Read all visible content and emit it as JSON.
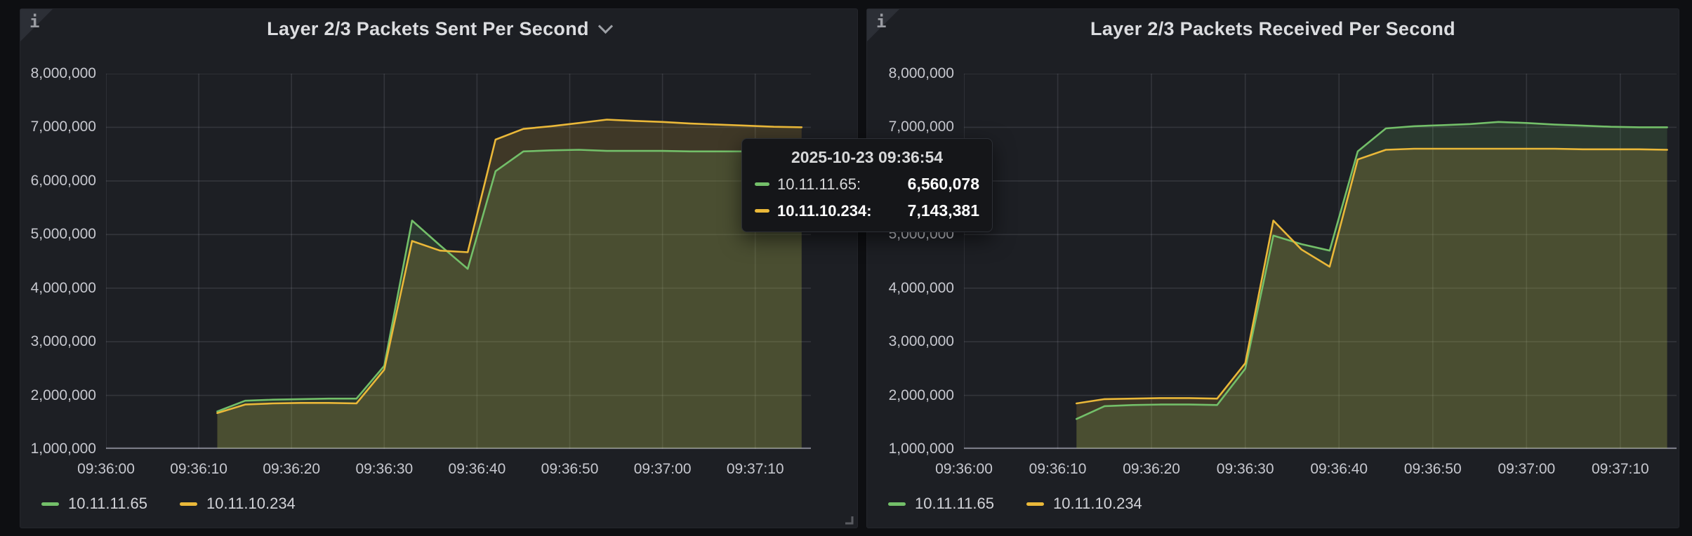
{
  "colors": {
    "page_bg": "#0e0f12",
    "panel_bg": "#1d1f24",
    "grid": "rgba(204,204,220,0.13)",
    "axis_line": "rgba(204,204,220,0.5)",
    "tick_text": "#c7c8cf",
    "title_text": "#dcdde0",
    "green": "#73bf69",
    "yellow": "#eab839"
  },
  "panels": [
    {
      "title": "Layer 2/3 Packets Sent Per Second",
      "has_title_dropdown": true,
      "info_icon": "i",
      "legend": [
        "10.11.11.65",
        "10.11.10.234"
      ]
    },
    {
      "title": "Layer 2/3 Packets Received Per Second",
      "has_title_dropdown": false,
      "info_icon": "i",
      "legend": [
        "10.11.11.65",
        "10.11.10.234"
      ]
    }
  ],
  "tooltip": {
    "header": "2025-10-23 09:36:54",
    "rows": [
      {
        "label": "10.11.11.65:",
        "value": "6,560,078",
        "color": "#73bf69",
        "bold": false
      },
      {
        "label": "10.11.10.234:",
        "value": "7,143,381",
        "color": "#eab839",
        "bold": true
      }
    ]
  },
  "chart_data": [
    {
      "type": "line",
      "title": "Layer 2/3 Packets Sent Per Second",
      "grid": true,
      "legend_position": "bottom-left",
      "fill_opacity": 0.17,
      "ylim": [
        1000000,
        8000000
      ],
      "yticks": [
        "8,000,000",
        "7,000,000",
        "6,000,000",
        "5,000,000",
        "4,000,000",
        "3,000,000",
        "2,000,000",
        "1,000,000"
      ],
      "xticks": [
        "09:36:00",
        "09:36:10",
        "09:36:20",
        "09:36:30",
        "09:36:40",
        "09:36:50",
        "09:37:00",
        "09:37:10"
      ],
      "x_domain": [
        "09:36:00",
        "09:37:16"
      ],
      "x": [
        "09:36:12",
        "09:36:15",
        "09:36:18",
        "09:36:21",
        "09:36:24",
        "09:36:27",
        "09:36:30",
        "09:36:33",
        "09:36:36",
        "09:36:39",
        "09:36:42",
        "09:36:45",
        "09:36:48",
        "09:36:51",
        "09:36:54",
        "09:36:57",
        "09:37:00",
        "09:37:03",
        "09:37:06",
        "09:37:09",
        "09:37:12",
        "09:37:15"
      ],
      "series": [
        {
          "name": "10.11.11.65",
          "color": "#73bf69",
          "values": [
            1700000,
            1900000,
            1920000,
            1930000,
            1940000,
            1940000,
            2550000,
            5260000,
            4800000,
            4360000,
            6180000,
            6550000,
            6570000,
            6580000,
            6560078,
            6560000,
            6560000,
            6550000,
            6550000,
            6550000,
            6550000,
            6550000
          ]
        },
        {
          "name": "10.11.10.234",
          "color": "#eab839",
          "values": [
            1670000,
            1830000,
            1850000,
            1860000,
            1860000,
            1850000,
            2480000,
            4880000,
            4700000,
            4670000,
            6770000,
            6970000,
            7020000,
            7080000,
            7143381,
            7120000,
            7100000,
            7070000,
            7050000,
            7030000,
            7010000,
            7000000
          ]
        }
      ]
    },
    {
      "type": "line",
      "title": "Layer 2/3 Packets Received Per Second",
      "grid": true,
      "legend_position": "bottom-left",
      "fill_opacity": 0.17,
      "ylim": [
        1000000,
        8000000
      ],
      "yticks": [
        "8,000,000",
        "7,000,000",
        "6,000,000",
        "5,000,000",
        "4,000,000",
        "3,000,000",
        "2,000,000",
        "1,000,000"
      ],
      "xticks": [
        "09:36:00",
        "09:36:10",
        "09:36:20",
        "09:36:30",
        "09:36:40",
        "09:36:50",
        "09:37:00",
        "09:37:10"
      ],
      "x_domain": [
        "09:36:00",
        "09:37:16"
      ],
      "x": [
        "09:36:12",
        "09:36:15",
        "09:36:18",
        "09:36:21",
        "09:36:24",
        "09:36:27",
        "09:36:30",
        "09:36:33",
        "09:36:36",
        "09:36:39",
        "09:36:42",
        "09:36:45",
        "09:36:48",
        "09:36:51",
        "09:36:54",
        "09:36:57",
        "09:37:00",
        "09:37:03",
        "09:37:06",
        "09:37:09",
        "09:37:12",
        "09:37:15"
      ],
      "series": [
        {
          "name": "10.11.11.65",
          "color": "#73bf69",
          "values": [
            1560000,
            1800000,
            1820000,
            1830000,
            1830000,
            1820000,
            2500000,
            4980000,
            4820000,
            4700000,
            6550000,
            6980000,
            7020000,
            7040000,
            7060000,
            7100000,
            7080000,
            7050000,
            7030000,
            7010000,
            7000000,
            7000000
          ]
        },
        {
          "name": "10.11.10.234",
          "color": "#eab839",
          "values": [
            1850000,
            1930000,
            1940000,
            1950000,
            1950000,
            1940000,
            2600000,
            5260000,
            4720000,
            4400000,
            6400000,
            6580000,
            6600000,
            6600000,
            6600000,
            6600000,
            6600000,
            6600000,
            6590000,
            6590000,
            6590000,
            6580000
          ]
        }
      ]
    }
  ]
}
